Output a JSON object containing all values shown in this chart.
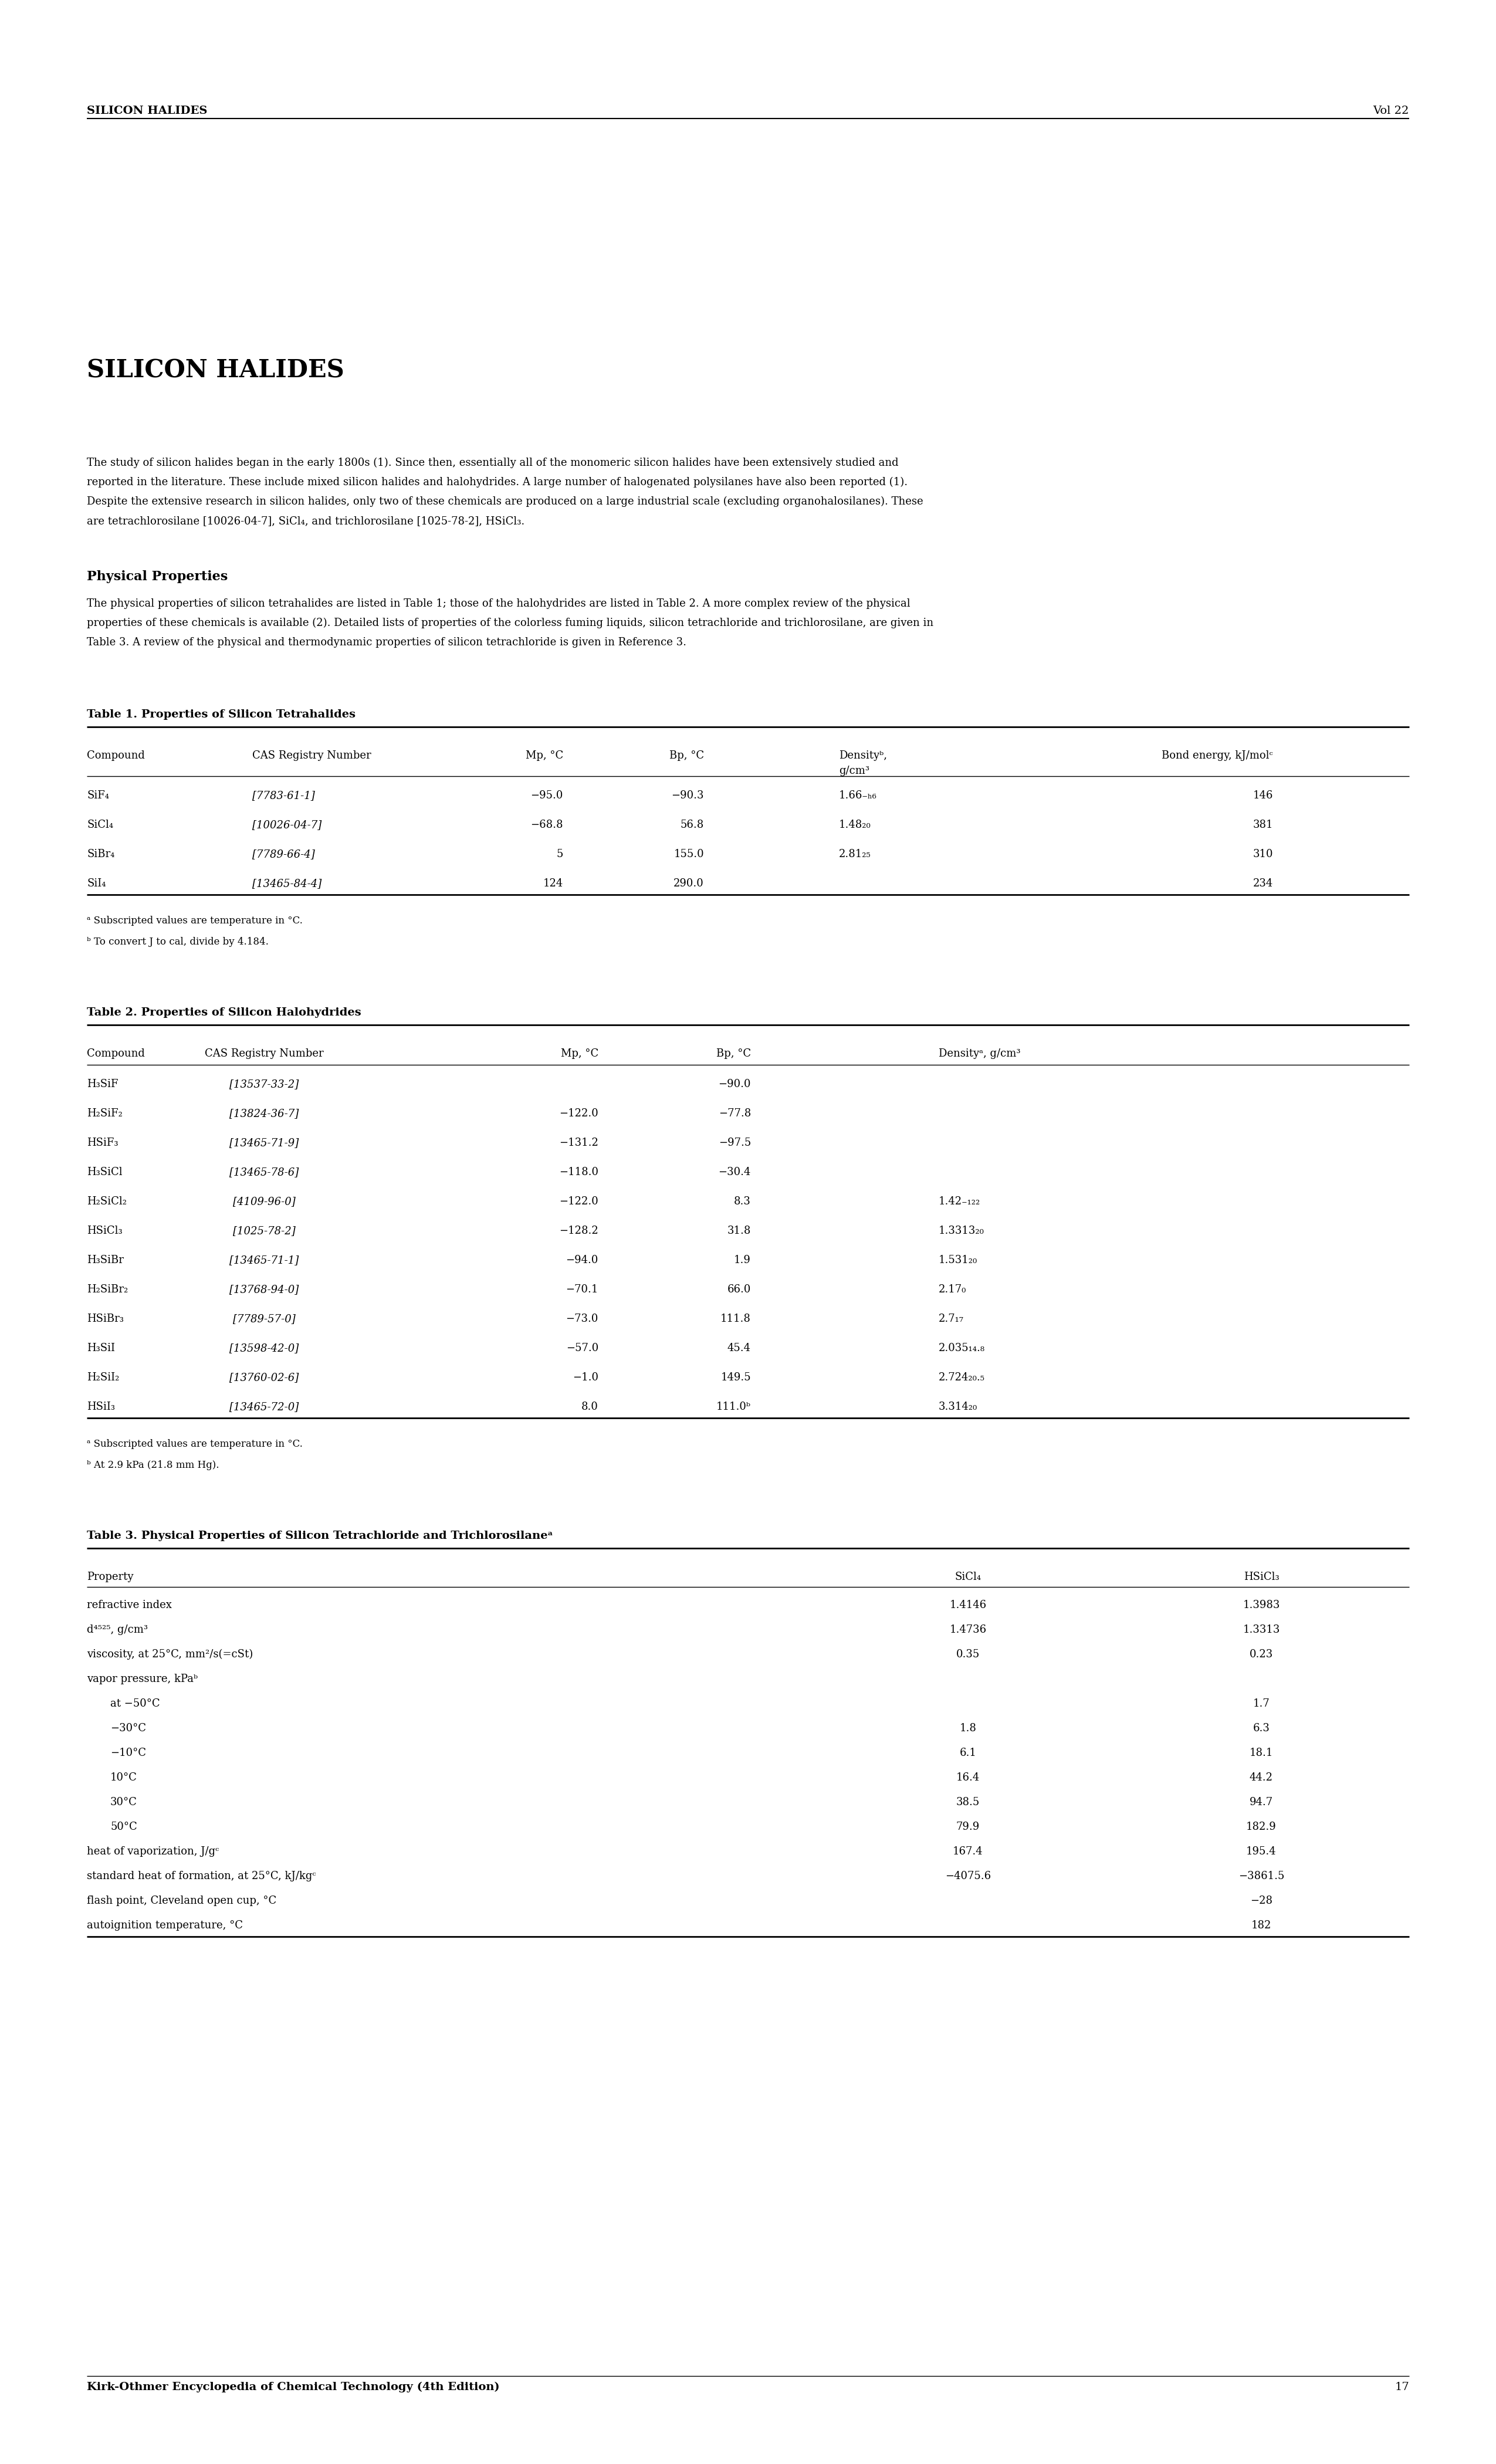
{
  "page_title_left": "SILICON HALIDES",
  "page_title_right": "Vol 22",
  "page_number": "17",
  "footer_text": "Kirk-Othmer Encyclopedia of Chemical Technology (4th Edition)",
  "section_title": "SILICON HALIDES",
  "intro_lines": [
    "The study of silicon halides began in the early 1800s (1). Since then, essentially all of the monomeric silicon halides have been extensively studied and",
    "reported in the literature. These include mixed silicon halides and halohydrides. A large number of halogenated polysilanes have also been reported (1).",
    "Despite the extensive research in silicon halides, only two of these chemicals are produced on a large industrial scale (excluding organohalosilanes). These",
    "are tetrachlorosilane [10026-04-7], SiCl₄, and trichlorosilane [1025-78-2], HSiCl₃."
  ],
  "phys_prop_title": "Physical Properties",
  "pp_lines": [
    "The physical properties of silicon tetrahalides are listed in Table 1; those of the halohydrides are listed in Table 2. A more complex review of the physical",
    "properties of these chemicals is available (2). Detailed lists of properties of the colorless fuming liquids, silicon tetrachloride and trichlorosilane, are given in",
    "Table 3. A review of the physical and thermodynamic properties of silicon tetrachloride is given in Reference 3."
  ],
  "table1_title": "Table 1. Properties of Silicon Tetrahalides",
  "table1_rows": [
    [
      "SiF₄",
      "[7783-61-1]",
      "−95.0",
      "−90.3",
      "1.66₋ₕ₆",
      "146"
    ],
    [
      "SiCl₄",
      "[10026-04-7]",
      "−68.8",
      "56.8",
      "1.48₂₀",
      "381"
    ],
    [
      "SiBr₄",
      "[7789-66-4]",
      "5",
      "155.0",
      "2.81₂₅",
      "310"
    ],
    [
      "SiI₄",
      "[13465-84-4]",
      "124",
      "290.0",
      "",
      "234"
    ]
  ],
  "table1_fn1": "ᵃ Subscripted values are temperature in °C.",
  "table1_fn2": "ᵇ To convert J to cal, divide by 4.184.",
  "table2_title": "Table 2. Properties of Silicon Halohydrides",
  "table2_rows": [
    [
      "H₃SiF",
      "[13537-33-2]",
      "",
      "−90.0",
      ""
    ],
    [
      "H₂SiF₂",
      "[13824-36-7]",
      "−122.0",
      "−77.8",
      ""
    ],
    [
      "HSiF₃",
      "[13465-71-9]",
      "−131.2",
      "−97.5",
      ""
    ],
    [
      "H₃SiCl",
      "[13465-78-6]",
      "−118.0",
      "−30.4",
      ""
    ],
    [
      "H₂SiCl₂",
      "[4109-96-0]",
      "−122.0",
      "8.3",
      "1.42₋₁₂₂"
    ],
    [
      "HSiCl₃",
      "[1025-78-2]",
      "−128.2",
      "31.8",
      "1.3313₂₀"
    ],
    [
      "H₃SiBr",
      "[13465-71-1]",
      "−94.0",
      "1.9",
      "1.531₂₀"
    ],
    [
      "H₂SiBr₂",
      "[13768-94-0]",
      "−70.1",
      "66.0",
      "2.17₀"
    ],
    [
      "HSiBr₃",
      "[7789-57-0]",
      "−73.0",
      "111.8",
      "2.7₁₇"
    ],
    [
      "H₃SiI",
      "[13598-42-0]",
      "−57.0",
      "45.4",
      "2.035₁₄.₈"
    ],
    [
      "H₂SiI₂",
      "[13760-02-6]",
      "−1.0",
      "149.5",
      "2.724₂₀.₅"
    ],
    [
      "HSiI₃",
      "[13465-72-0]",
      "8.0",
      "111.0ᵇ",
      "3.314₂₀"
    ]
  ],
  "table2_fn1": "ᵃ Subscripted values are temperature in °C.",
  "table2_fn2": "ᵇ At 2.9 kPa (21.8 mm Hg).",
  "table3_title": "Table 3. Physical Properties of Silicon Tetrachloride and Trichlorosilaneᵃ",
  "table3_rows": [
    [
      "refractive index",
      "1.4146",
      "1.3983",
      false
    ],
    [
      "d⁴⁵²⁵, g/cm³",
      "1.4736",
      "1.3313",
      false
    ],
    [
      "viscosity, at 25°C, mm²/s(=cSt)",
      "0.35",
      "0.23",
      false
    ],
    [
      "vapor pressure, kPaᵇ",
      "",
      "",
      false
    ],
    [
      "at −50°C",
      "",
      "1.7",
      true
    ],
    [
      "−30°C",
      "1.8",
      "6.3",
      true
    ],
    [
      "−10°C",
      "6.1",
      "18.1",
      true
    ],
    [
      "10°C",
      "16.4",
      "44.2",
      true
    ],
    [
      "30°C",
      "38.5",
      "94.7",
      true
    ],
    [
      "50°C",
      "79.9",
      "182.9",
      true
    ],
    [
      "heat of vaporization, J/gᶜ",
      "167.4",
      "195.4",
      false
    ],
    [
      "standard heat of formation, at 25°C, kJ/kgᶜ",
      "−4075.6",
      "−3861.5",
      false
    ],
    [
      "flash point, Cleveland open cup, °C",
      "",
      "−28",
      false
    ],
    [
      "autoignition temperature, °C",
      "",
      "182",
      false
    ]
  ]
}
